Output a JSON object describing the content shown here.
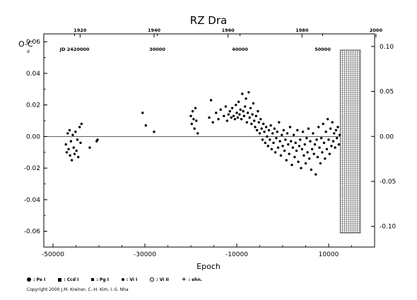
{
  "chart_data": {
    "type": "scatter",
    "title": "RZ Dra",
    "xlabel": "Epoch",
    "ylabel_left": "O-C",
    "ylabel_left_units_mark": "d",
    "xlim": [
      -52000,
      20000
    ],
    "xticks": [
      "-50000",
      "-30000",
      "-10000",
      "10000"
    ],
    "xtick_values": [
      -50000,
      -30000,
      -10000,
      10000
    ],
    "ylim": [
      -0.07,
      0.065
    ],
    "yticks": [
      "0.06",
      "0.04",
      "0.02",
      "0.00",
      "-0.02",
      "-0.04",
      "-0.06"
    ],
    "ytick_values": [
      0.06,
      0.04,
      0.02,
      0.0,
      -0.02,
      -0.04,
      -0.06
    ],
    "right_yticks": [
      "0.10",
      "0.05",
      "0.00",
      "-0.05",
      "-0.10"
    ],
    "right_ytick_values": [
      0.1,
      0.05,
      0.0,
      -0.05,
      -0.1
    ],
    "right_ylim": [
      -0.123,
      0.114
    ],
    "top_axis_year_labels": [
      "1920",
      "1940",
      "1960",
      "1980",
      "2000"
    ],
    "top_axis_year_epochs": [
      -44100,
      -28000,
      -11900,
      4200,
      20300
    ],
    "top_axis_jd_labels": [
      "JD 2420000",
      "30000",
      "40000",
      "50000"
    ],
    "top_axis_jd_epochs": [
      -45300,
      -27300,
      -9300,
      8700
    ],
    "future_region_start_epoch": 12500,
    "zero_line": true,
    "series": [
      {
        "marker": "dot",
        "points": [
          [
            -47200,
            -0.005
          ],
          [
            -47000,
            -0.01
          ],
          [
            -46800,
            0.002
          ],
          [
            -46600,
            -0.008
          ],
          [
            -46400,
            0.004
          ],
          [
            -46300,
            -0.012
          ],
          [
            -46100,
            -0.003
          ],
          [
            -45900,
            -0.015
          ],
          [
            -45700,
            0.001
          ],
          [
            -45500,
            -0.007
          ],
          [
            -45300,
            -0.011
          ],
          [
            -45100,
            0.003
          ],
          [
            -44900,
            -0.009
          ],
          [
            -44700,
            -0.002
          ],
          [
            -44500,
            -0.013
          ],
          [
            -44200,
            0.006
          ],
          [
            -44000,
            -0.004
          ],
          [
            -43800,
            0.008
          ],
          [
            -42000,
            -0.007
          ],
          [
            -40500,
            -0.003
          ],
          [
            -40300,
            -0.002
          ],
          [
            -30500,
            0.015
          ],
          [
            -29800,
            0.007
          ],
          [
            -28000,
            0.003
          ],
          [
            -20000,
            0.013
          ],
          [
            -19800,
            0.008
          ],
          [
            -19600,
            0.016
          ],
          [
            -19400,
            0.011
          ],
          [
            -19200,
            0.005
          ],
          [
            -19000,
            0.018
          ],
          [
            -18800,
            0.01
          ],
          [
            -18500,
            0.002
          ],
          [
            -16000,
            0.012
          ],
          [
            -15600,
            0.023
          ],
          [
            -15200,
            0.009
          ],
          [
            -14500,
            0.015
          ],
          [
            -14000,
            0.011
          ],
          [
            -13500,
            0.017
          ],
          [
            -12800,
            0.013
          ],
          [
            -12400,
            0.019
          ],
          [
            -12100,
            0.01
          ],
          [
            -11800,
            0.014
          ],
          [
            -11500,
            0.016
          ],
          [
            -11200,
            0.012
          ],
          [
            -11000,
            0.018
          ],
          [
            -10700,
            0.013
          ],
          [
            -10400,
            0.011
          ],
          [
            -10200,
            0.02
          ],
          [
            -10000,
            0.015
          ],
          [
            -9800,
            0.012
          ],
          [
            -9600,
            0.022
          ],
          [
            -9400,
            0.014
          ],
          [
            -9200,
            0.017
          ],
          [
            -9000,
            0.011
          ],
          [
            -8800,
            0.027
          ],
          [
            -8600,
            0.016
          ],
          [
            -8400,
            0.013
          ],
          [
            -8200,
            0.019
          ],
          [
            -8000,
            0.024
          ],
          [
            -7800,
            0.009
          ],
          [
            -7600,
            0.015
          ],
          [
            -7400,
            0.028
          ],
          [
            -7200,
            0.012
          ],
          [
            -7000,
            0.018
          ],
          [
            -6800,
            0.008
          ],
          [
            -6600,
            0.014
          ],
          [
            -6400,
            0.021
          ],
          [
            -6200,
            0.01
          ],
          [
            -6000,
            0.006
          ],
          [
            -5800,
            0.013
          ],
          [
            -5600,
            0.004
          ],
          [
            -5400,
            0.016
          ],
          [
            -5200,
            0.009
          ],
          [
            -5000,
            0.002
          ],
          [
            -4800,
            0.011
          ],
          [
            -4600,
            0.005
          ],
          [
            -4400,
            -0.002
          ],
          [
            -4200,
            0.008
          ],
          [
            -4000,
            0.003
          ],
          [
            -3800,
            -0.004
          ],
          [
            -3600,
            0.006
          ],
          [
            -3400,
            0.0
          ],
          [
            -3200,
            -0.006
          ],
          [
            -3000,
            0.004
          ],
          [
            -2800,
            -0.002
          ],
          [
            -2600,
            0.007
          ],
          [
            -2400,
            -0.008
          ],
          [
            -2200,
            0.002
          ],
          [
            -2000,
            -0.004
          ],
          [
            -1800,
            0.005
          ],
          [
            -1600,
            -0.01
          ],
          [
            -1400,
            -0.001
          ],
          [
            -1200,
            0.003
          ],
          [
            -1000,
            -0.007
          ],
          [
            -800,
            0.009
          ],
          [
            -600,
            -0.003
          ],
          [
            -400,
            -0.012
          ],
          [
            -200,
            0.001
          ],
          [
            0,
            -0.006
          ],
          [
            200,
            0.004
          ],
          [
            400,
            -0.009
          ],
          [
            600,
            -0.002
          ],
          [
            800,
            -0.015
          ],
          [
            1000,
            0.002
          ],
          [
            1200,
            -0.005
          ],
          [
            1400,
            -0.011
          ],
          [
            1600,
            0.006
          ],
          [
            1800,
            -0.003
          ],
          [
            2000,
            -0.018
          ],
          [
            2200,
            -0.007
          ],
          [
            2400,
            0.001
          ],
          [
            2600,
            -0.013
          ],
          [
            2800,
            -0.004
          ],
          [
            3000,
            -0.009
          ],
          [
            3200,
            0.004
          ],
          [
            3400,
            -0.016
          ],
          [
            3600,
            -0.006
          ],
          [
            3800,
            -0.002
          ],
          [
            4000,
            -0.02
          ],
          [
            4200,
            -0.008
          ],
          [
            4400,
            0.003
          ],
          [
            4600,
            -0.012
          ],
          [
            4800,
            -0.005
          ],
          [
            5000,
            -0.017
          ],
          [
            5200,
            -0.001
          ],
          [
            5400,
            -0.01
          ],
          [
            5600,
            0.005
          ],
          [
            5800,
            -0.014
          ],
          [
            6000,
            -0.003
          ],
          [
            6200,
            -0.021
          ],
          [
            6400,
            -0.008
          ],
          [
            6600,
            0.002
          ],
          [
            6800,
            -0.011
          ],
          [
            7000,
            -0.005
          ],
          [
            7200,
            -0.024
          ],
          [
            7400,
            -0.002
          ],
          [
            7600,
            -0.013
          ],
          [
            7800,
            0.006
          ],
          [
            8000,
            -0.007
          ],
          [
            8200,
            -0.017
          ],
          [
            8400,
            -0.001
          ],
          [
            8600,
            -0.01
          ],
          [
            8800,
            0.008
          ],
          [
            9000,
            -0.004
          ],
          [
            9200,
            -0.014
          ],
          [
            9400,
            0.003
          ],
          [
            9600,
            -0.008
          ],
          [
            9800,
            0.011
          ],
          [
            10000,
            -0.002
          ],
          [
            10200,
            -0.011
          ],
          [
            10400,
            0.005
          ],
          [
            10600,
            -0.006
          ],
          [
            10800,
            0.009
          ],
          [
            11000,
            -0.003
          ],
          [
            11200,
            0.002
          ],
          [
            11400,
            -0.007
          ],
          [
            11600,
            0.004
          ],
          [
            11800,
            -0.001
          ],
          [
            12000,
            0.006
          ],
          [
            12200,
            -0.005
          ],
          [
            12400,
            0.001
          ]
        ]
      }
    ]
  },
  "legend": {
    "items": [
      {
        "symbol": "circle",
        "label": ": Pe I"
      },
      {
        "symbol": "square",
        "label": ": Ccd I"
      },
      {
        "symbol": "small-square",
        "label": ": Pg I"
      },
      {
        "symbol": "dot",
        "label": ": Vi I"
      },
      {
        "symbol": "open-circle",
        "label": ": Vi II"
      },
      {
        "symbol": "plus",
        "label": ": ehn."
      }
    ]
  },
  "copyright": "Copyright 2000 J.M. Kreiner, C.-H. Kim, I.-S. Nha"
}
